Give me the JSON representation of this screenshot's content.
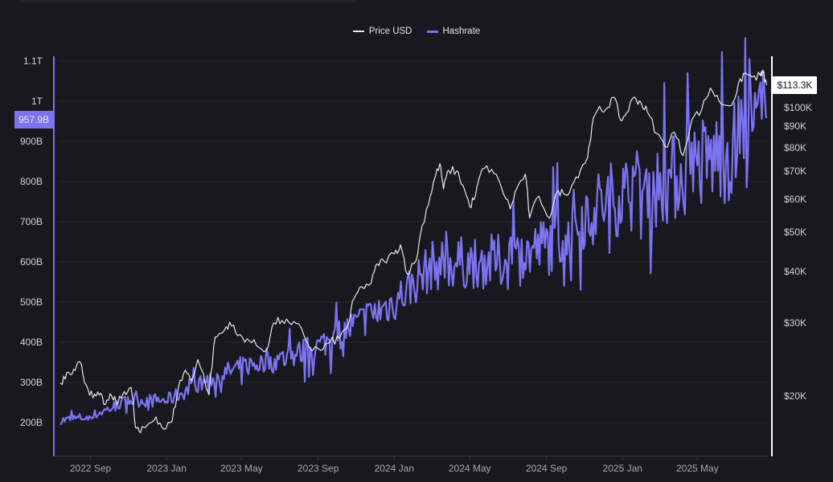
{
  "legend": {
    "items": [
      {
        "label": "Price USD",
        "color": "#e8e8ee"
      },
      {
        "label": "Hashrate",
        "color": "#7b73f0"
      }
    ]
  },
  "badges": {
    "hashrate_current": "957.9B",
    "price_current": "$113.3K"
  },
  "colors": {
    "background": "#19181f",
    "grid": "#26252d",
    "hashrate": "#7b73f0",
    "price": "#e8e8ee",
    "left_axis": "#7b73f0",
    "right_axis": "#ffffff"
  },
  "chart_data": {
    "type": "line",
    "title": "",
    "xlabel": "",
    "ylabel_left": "Hashrate",
    "ylabel_right": "Price USD",
    "legend_position": "top-center",
    "grid": true,
    "x_ticks": [
      "2022 Sep",
      "2023 Jan",
      "2023 May",
      "2023 Sep",
      "2024 Jan",
      "2024 May",
      "2024 Sep",
      "2025 Jan",
      "2025 May"
    ],
    "y_left_ticks": [
      "1.1T",
      "1T",
      "900B",
      "800B",
      "700B",
      "600B",
      "500B",
      "400B",
      "300B",
      "200B"
    ],
    "y_left_range_B": [
      150,
      1100
    ],
    "y_right_ticks": [
      "$100K",
      "$90K",
      "$80K",
      "$70K",
      "$60K",
      "$50K",
      "$40K",
      "$30K",
      "$20K"
    ],
    "y_right_scale": "log",
    "x_range": [
      "2022-07",
      "2025-08"
    ],
    "series": [
      {
        "name": "Price USD",
        "unit": "K USD",
        "axis": "right",
        "points": [
          [
            "2022-07-15",
            21.5
          ],
          [
            "2022-07-25",
            22.8
          ],
          [
            "2022-08-05",
            23.2
          ],
          [
            "2022-08-15",
            24.2
          ],
          [
            "2022-08-25",
            21.3
          ],
          [
            "2022-09-05",
            19.8
          ],
          [
            "2022-09-15",
            20.1
          ],
          [
            "2022-09-25",
            19.1
          ],
          [
            "2022-10-05",
            20.0
          ],
          [
            "2022-10-15",
            19.2
          ],
          [
            "2022-10-25",
            20.5
          ],
          [
            "2022-11-05",
            21.0
          ],
          [
            "2022-11-12",
            16.8
          ],
          [
            "2022-11-20",
            16.3
          ],
          [
            "2022-12-01",
            17.0
          ],
          [
            "2022-12-15",
            17.8
          ],
          [
            "2022-12-28",
            16.6
          ],
          [
            "2023-01-10",
            17.4
          ],
          [
            "2023-01-20",
            21.0
          ],
          [
            "2023-01-31",
            23.1
          ],
          [
            "2023-02-10",
            21.8
          ],
          [
            "2023-02-20",
            24.5
          ],
          [
            "2023-03-10",
            20.2
          ],
          [
            "2023-03-20",
            27.8
          ],
          [
            "2023-04-01",
            28.5
          ],
          [
            "2023-04-12",
            30.2
          ],
          [
            "2023-04-25",
            28.0
          ],
          [
            "2023-05-10",
            27.5
          ],
          [
            "2023-05-25",
            26.5
          ],
          [
            "2023-06-10",
            25.8
          ],
          [
            "2023-06-22",
            30.1
          ],
          [
            "2023-07-05",
            30.5
          ],
          [
            "2023-07-20",
            29.8
          ],
          [
            "2023-08-05",
            29.2
          ],
          [
            "2023-08-18",
            26.2
          ],
          [
            "2023-09-05",
            25.8
          ],
          [
            "2023-09-20",
            27.0
          ],
          [
            "2023-10-05",
            27.6
          ],
          [
            "2023-10-20",
            30.0
          ],
          [
            "2023-10-28",
            34.3
          ],
          [
            "2023-11-10",
            36.8
          ],
          [
            "2023-11-25",
            37.5
          ],
          [
            "2023-12-05",
            41.8
          ],
          [
            "2023-12-15",
            42.5
          ],
          [
            "2024-01-01",
            44.2
          ],
          [
            "2024-01-11",
            46.5
          ],
          [
            "2024-01-22",
            39.5
          ],
          [
            "2024-02-05",
            42.6
          ],
          [
            "2024-02-15",
            51.8
          ],
          [
            "2024-02-28",
            61.2
          ],
          [
            "2024-03-05",
            66.8
          ],
          [
            "2024-03-14",
            73.1
          ],
          [
            "2024-03-20",
            63.5
          ],
          [
            "2024-03-28",
            70.5
          ],
          [
            "2024-04-10",
            70.2
          ],
          [
            "2024-04-20",
            64.8
          ],
          [
            "2024-05-01",
            57.5
          ],
          [
            "2024-05-10",
            61.0
          ],
          [
            "2024-05-21",
            71.0
          ],
          [
            "2024-06-05",
            70.8
          ],
          [
            "2024-06-20",
            64.6
          ],
          [
            "2024-07-05",
            56.8
          ],
          [
            "2024-07-15",
            63.5
          ],
          [
            "2024-07-29",
            69.0
          ],
          [
            "2024-08-05",
            54.0
          ],
          [
            "2024-08-20",
            61.0
          ],
          [
            "2024-09-06",
            54.0
          ],
          [
            "2024-09-20",
            63.0
          ],
          [
            "2024-10-01",
            61.5
          ],
          [
            "2024-10-15",
            66.0
          ],
          [
            "2024-10-29",
            72.5
          ],
          [
            "2024-11-06",
            75.6
          ],
          [
            "2024-11-13",
            90.2
          ],
          [
            "2024-11-22",
            98.5
          ],
          [
            "2024-12-05",
            99.0
          ],
          [
            "2024-12-17",
            106.0
          ],
          [
            "2024-12-30",
            92.8
          ],
          [
            "2025-01-07",
            97.0
          ],
          [
            "2025-01-20",
            106.1
          ],
          [
            "2025-01-31",
            102.4
          ],
          [
            "2025-02-10",
            97.5
          ],
          [
            "2025-02-25",
            86.5
          ],
          [
            "2025-03-10",
            80.5
          ],
          [
            "2025-03-25",
            87.2
          ],
          [
            "2025-04-08",
            76.5
          ],
          [
            "2025-04-22",
            93.5
          ],
          [
            "2025-05-08",
            99.0
          ],
          [
            "2025-05-22",
            111.5
          ],
          [
            "2025-06-05",
            103.5
          ],
          [
            "2025-06-22",
            101.0
          ],
          [
            "2025-07-03",
            108.5
          ],
          [
            "2025-07-14",
            121.0
          ],
          [
            "2025-07-28",
            118.5
          ],
          [
            "2025-08-10",
            119.5
          ],
          [
            "2025-08-14",
            121.8
          ],
          [
            "2025-08-20",
            113.3
          ]
        ]
      },
      {
        "name": "Hashrate",
        "unit": "B (H/s, as labeled)",
        "axis": "left",
        "trend_points": [
          [
            "2022-07-15",
            205
          ],
          [
            "2022-09-01",
            215
          ],
          [
            "2022-11-01",
            255
          ],
          [
            "2023-01-01",
            255
          ],
          [
            "2023-03-01",
            300
          ],
          [
            "2023-05-01",
            340
          ],
          [
            "2023-07-01",
            355
          ],
          [
            "2023-09-01",
            390
          ],
          [
            "2023-11-01",
            445
          ],
          [
            "2024-01-01",
            500
          ],
          [
            "2024-03-01",
            590
          ],
          [
            "2024-05-01",
            600
          ],
          [
            "2024-07-01",
            600
          ],
          [
            "2024-09-01",
            640
          ],
          [
            "2024-11-01",
            720
          ],
          [
            "2025-01-01",
            770
          ],
          [
            "2025-03-01",
            790
          ],
          [
            "2025-05-01",
            840
          ],
          [
            "2025-07-01",
            880
          ],
          [
            "2025-08-20",
            957.9
          ]
        ],
        "noise_amplitude_pct": 9,
        "last_value": 957.9
      }
    ]
  }
}
